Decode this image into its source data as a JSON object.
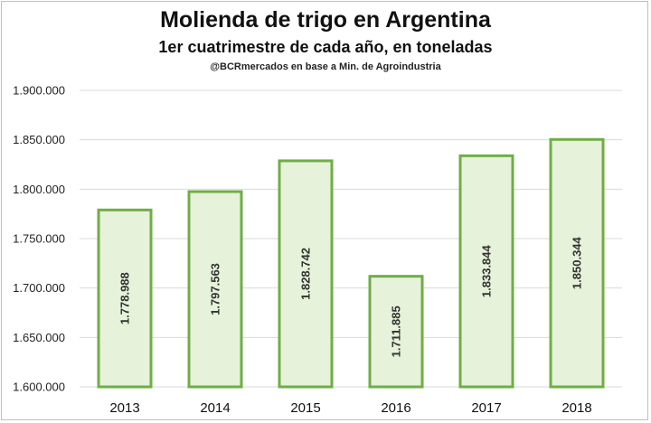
{
  "chart_data": {
    "type": "bar",
    "title": "Molienda de trigo en Argentina",
    "subtitle": "1er cuatrimestre de cada año, en toneladas",
    "source": "@BCRmercados en base a Min. de Agroindustria",
    "categories": [
      "2013",
      "2014",
      "2015",
      "2016",
      "2017",
      "2018"
    ],
    "values": [
      1778988,
      1797563,
      1828742,
      1711885,
      1833844,
      1850344
    ],
    "data_labels": [
      "1.778.988",
      "1.797.563",
      "1.828.742",
      "1.711.885",
      "1.833.844",
      "1.850.344"
    ],
    "ylim": [
      1600000,
      1900000
    ],
    "yticks": [
      1600000,
      1650000,
      1700000,
      1750000,
      1800000,
      1850000,
      1900000
    ],
    "ytick_labels": [
      "1.600.000",
      "1.650.000",
      "1.700.000",
      "1.750.000",
      "1.800.000",
      "1.850.000",
      "1.900.000"
    ],
    "xlabel": "",
    "ylabel": "",
    "grid": true,
    "colors": {
      "bar_fill": "#e6f2d9",
      "bar_border": "#70ad47",
      "grid": "#d9d9d9"
    }
  }
}
